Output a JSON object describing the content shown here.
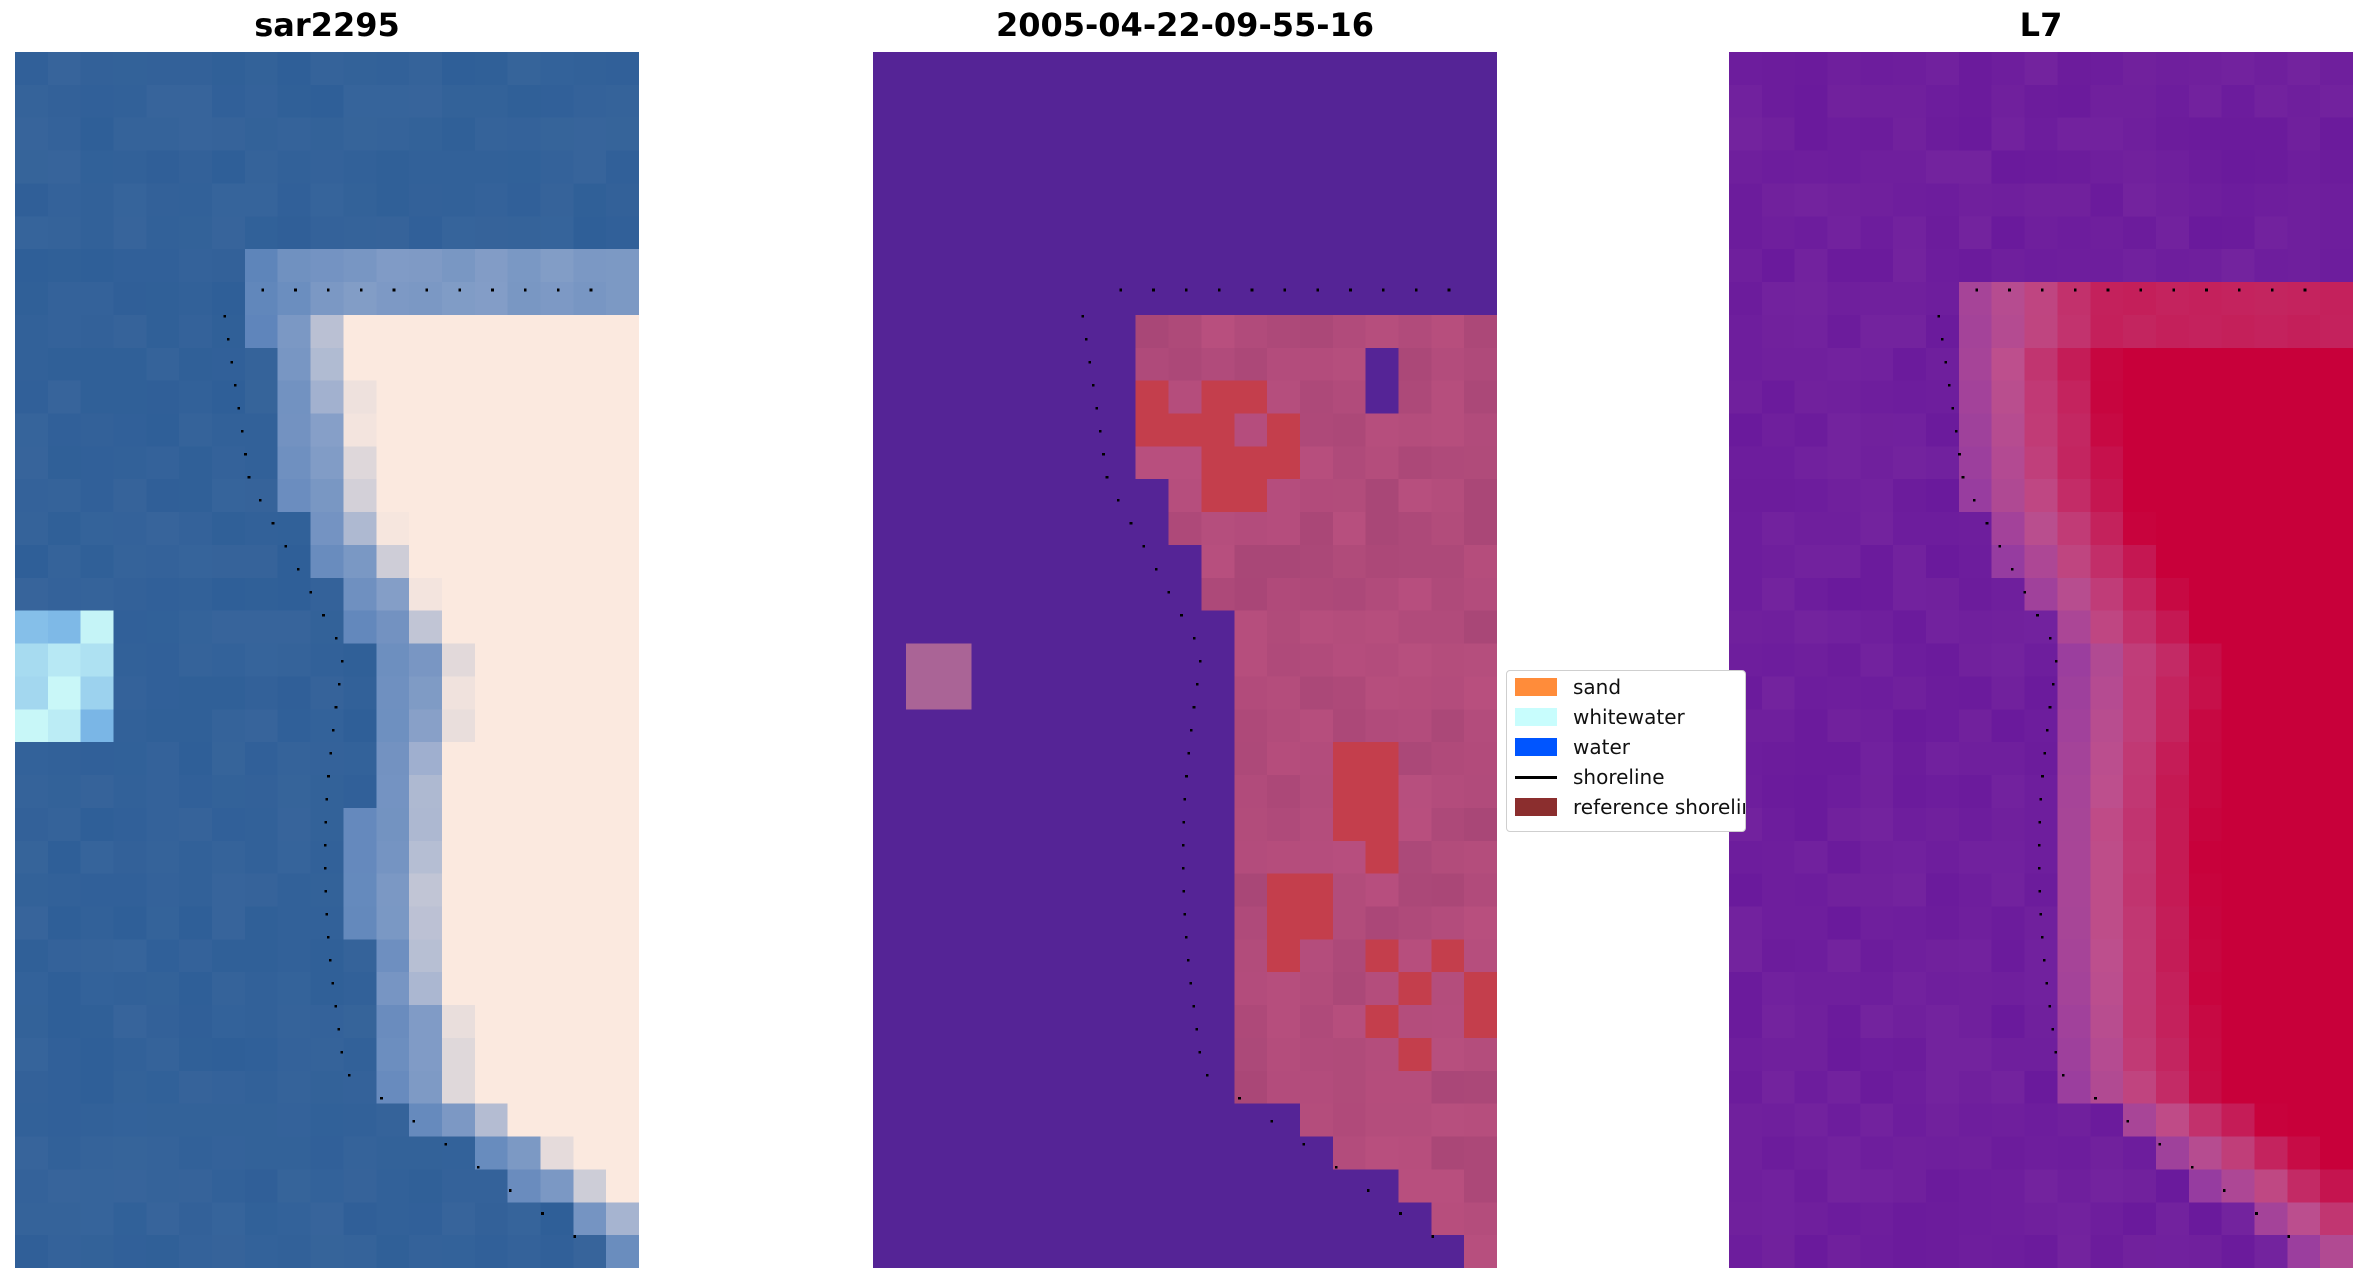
{
  "panels": [
    {
      "title": "sar2295",
      "palette": "rgb"
    },
    {
      "title": "2005-04-22-09-55-16",
      "palette": "classes"
    },
    {
      "title": "L7",
      "palette": "index"
    }
  ],
  "legend": {
    "items": [
      {
        "label": "sand",
        "kind": "patch",
        "color": "#ff8c3a"
      },
      {
        "label": "whitewater",
        "kind": "patch",
        "color": "#c8fdfd"
      },
      {
        "label": "water",
        "kind": "patch",
        "color": "#0055ff"
      },
      {
        "label": "shoreline",
        "kind": "line",
        "color": "#000000"
      },
      {
        "label": "reference shoreline",
        "kind": "patch",
        "color": "#8b2e2e"
      }
    ]
  },
  "colors": {
    "water_dark": "#2f5f98",
    "sand_light": "#fbe9df",
    "class_water": "#552496",
    "class_sand": "#b84f7e",
    "class_red": "#c43e4c",
    "index_low": "#6a1a9c",
    "index_high": "#c8003a"
  }
}
